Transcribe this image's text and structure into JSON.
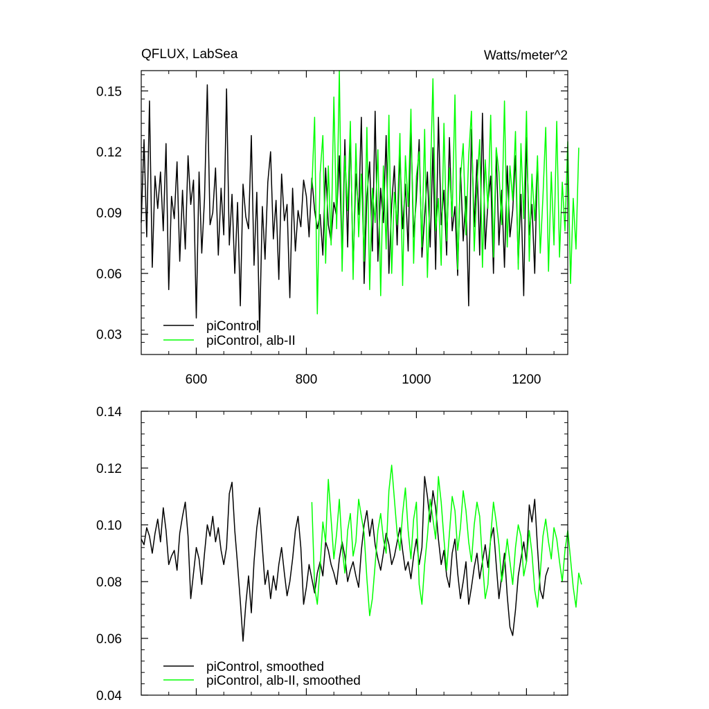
{
  "chart_data": [
    {
      "type": "line",
      "title": "QFLUX, LabSea",
      "units": "Watts/meter^2",
      "xlim": [
        500,
        1275
      ],
      "ylim": [
        0.02,
        0.16
      ],
      "xticks": [
        600,
        800,
        1000,
        1200
      ],
      "xtick_labels": [
        "600",
        "800",
        "1000",
        "1200"
      ],
      "yticks": [
        0.03,
        0.06,
        0.09,
        0.12,
        0.15
      ],
      "ytick_labels": [
        "0.03",
        "0.06",
        "0.09",
        "0.12",
        "0.15"
      ],
      "legend_position": "bottom-left",
      "grid": false,
      "series": [
        {
          "name": "piControl",
          "color": "#000000",
          "x_start": 500,
          "x_step": 5,
          "values": [
            0.085,
            0.126,
            0.078,
            0.145,
            0.063,
            0.108,
            0.092,
            0.11,
            0.081,
            0.124,
            0.052,
            0.098,
            0.087,
            0.115,
            0.066,
            0.101,
            0.072,
            0.118,
            0.094,
            0.106,
            0.038,
            0.11,
            0.07,
            0.097,
            0.153,
            0.084,
            0.09,
            0.112,
            0.069,
            0.102,
            0.079,
            0.151,
            0.074,
            0.099,
            0.06,
            0.095,
            0.044,
            0.104,
            0.088,
            0.082,
            0.128,
            0.064,
            0.1,
            0.031,
            0.093,
            0.067,
            0.105,
            0.12,
            0.077,
            0.096,
            0.057,
            0.109,
            0.086,
            0.094,
            0.048,
            0.102,
            0.071,
            0.091,
            0.083,
            0.106,
            0.098,
            0.078,
            0.107,
            0.091,
            0.082,
            0.089,
            0.069,
            0.112,
            0.084,
            0.076,
            0.095,
            0.088,
            0.118,
            0.067,
            0.126,
            0.073,
            0.131,
            0.062,
            0.109,
            0.089,
            0.137,
            0.055,
            0.098,
            0.115,
            0.071,
            0.14,
            0.066,
            0.102,
            0.085,
            0.128,
            0.06,
            0.094,
            0.113,
            0.074,
            0.119,
            0.082,
            0.104,
            0.071,
            0.133,
            0.078,
            0.097,
            0.126,
            0.068,
            0.088,
            0.11,
            0.073,
            0.122,
            0.062,
            0.137,
            0.084,
            0.101,
            0.069,
            0.127,
            0.081,
            0.093,
            0.059,
            0.112,
            0.076,
            0.098,
            0.044,
            0.131,
            0.083,
            0.116,
            0.069,
            0.139,
            0.072,
            0.095,
            0.108,
            0.06,
            0.121,
            0.074,
            0.101,
            0.063,
            0.113,
            0.078,
            0.091,
            0.118,
            0.065,
            0.099,
            0.049,
            0.127,
            0.079,
            0.094,
            0.06,
            0.117
          ]
        },
        {
          "name": "piControl, alb-II",
          "color": "#00ff00",
          "x_start": 810,
          "x_step": 5,
          "values": [
            0.102,
            0.137,
            0.04,
            0.109,
            0.128,
            0.065,
            0.113,
            0.074,
            0.147,
            0.082,
            0.16,
            0.061,
            0.118,
            0.091,
            0.135,
            0.057,
            0.124,
            0.078,
            0.109,
            0.066,
            0.132,
            0.052,
            0.102,
            0.085,
            0.121,
            0.049,
            0.113,
            0.072,
            0.138,
            0.06,
            0.1,
            0.084,
            0.129,
            0.054,
            0.118,
            0.093,
            0.141,
            0.065,
            0.108,
            0.12,
            0.073,
            0.131,
            0.058,
            0.103,
            0.156,
            0.081,
            0.097,
            0.064,
            0.134,
            0.076,
            0.112,
            0.088,
            0.148,
            0.062,
            0.107,
            0.124,
            0.079,
            0.118,
            0.14,
            0.071,
            0.103,
            0.126,
            0.063,
            0.116,
            0.092,
            0.138,
            0.068,
            0.122,
            0.11,
            0.084,
            0.145,
            0.073,
            0.113,
            0.096,
            0.13,
            0.062,
            0.124,
            0.087,
            0.14,
            0.066,
            0.109,
            0.086,
            0.118,
            0.07,
            0.098,
            0.132,
            0.061,
            0.11,
            0.074,
            0.135,
            0.068,
            0.105,
            0.081,
            0.125,
            0.055,
            0.097,
            0.072,
            0.122
          ]
        }
      ]
    },
    {
      "type": "line",
      "xlim": [
        500,
        1275
      ],
      "ylim": [
        0.04,
        0.14
      ],
      "yticks": [
        0.04,
        0.06,
        0.08,
        0.1,
        0.12,
        0.14
      ],
      "ytick_labels": [
        "0.04",
        "0.06",
        "0.08",
        "0.10",
        "0.12",
        "0.14"
      ],
      "xticks": [
        600,
        800,
        1000,
        1200
      ],
      "legend_position": "bottom-left",
      "grid": false,
      "series": [
        {
          "name": "piControl, smoothed",
          "color": "#000000",
          "x_start": 500,
          "x_step": 5,
          "values": [
            0.095,
            0.093,
            0.099,
            0.096,
            0.09,
            0.097,
            0.102,
            0.094,
            0.106,
            0.098,
            0.086,
            0.089,
            0.091,
            0.084,
            0.097,
            0.103,
            0.108,
            0.096,
            0.074,
            0.083,
            0.092,
            0.088,
            0.079,
            0.09,
            0.1,
            0.096,
            0.103,
            0.094,
            0.099,
            0.091,
            0.086,
            0.092,
            0.111,
            0.115,
            0.098,
            0.086,
            0.073,
            0.059,
            0.072,
            0.082,
            0.069,
            0.087,
            0.099,
            0.106,
            0.092,
            0.079,
            0.084,
            0.074,
            0.082,
            0.077,
            0.086,
            0.092,
            0.083,
            0.075,
            0.08,
            0.088,
            0.098,
            0.103,
            0.092,
            0.072,
            0.078,
            0.086,
            0.081,
            0.076,
            0.083,
            0.087,
            0.082,
            0.094,
            0.091,
            0.086,
            0.083,
            0.079,
            0.088,
            0.094,
            0.089,
            0.08,
            0.084,
            0.087,
            0.082,
            0.078,
            0.091,
            0.1,
            0.105,
            0.096,
            0.102,
            0.093,
            0.088,
            0.084,
            0.09,
            0.097,
            0.093,
            0.086,
            0.089,
            0.094,
            0.099,
            0.091,
            0.084,
            0.087,
            0.081,
            0.089,
            0.095,
            0.086,
            0.092,
            0.117,
            0.11,
            0.101,
            0.112,
            0.106,
            0.095,
            0.086,
            0.091,
            0.082,
            0.078,
            0.09,
            0.095,
            0.083,
            0.074,
            0.08,
            0.087,
            0.072,
            0.078,
            0.085,
            0.09,
            0.081,
            0.087,
            0.093,
            0.085,
            0.095,
            0.099,
            0.086,
            0.074,
            0.082,
            0.09,
            0.075,
            0.064,
            0.061,
            0.07,
            0.082,
            0.088,
            0.094,
            0.087,
            0.107,
            0.101,
            0.109,
            0.092,
            0.077,
            0.074,
            0.082,
            0.085
          ]
        },
        {
          "name": "piControl, alb-II, smoothed",
          "color": "#00ff00",
          "x_start": 810,
          "x_step": 5,
          "values": [
            0.108,
            0.078,
            0.072,
            0.085,
            0.101,
            0.094,
            0.116,
            0.102,
            0.088,
            0.097,
            0.109,
            0.092,
            0.083,
            0.098,
            0.104,
            0.089,
            0.094,
            0.109,
            0.103,
            0.097,
            0.081,
            0.068,
            0.074,
            0.086,
            0.098,
            0.104,
            0.095,
            0.09,
            0.112,
            0.121,
            0.109,
            0.097,
            0.091,
            0.104,
            0.113,
            0.098,
            0.088,
            0.102,
            0.108,
            0.079,
            0.072,
            0.086,
            0.096,
            0.109,
            0.102,
            0.095,
            0.117,
            0.108,
            0.095,
            0.084,
            0.097,
            0.11,
            0.105,
            0.091,
            0.099,
            0.112,
            0.105,
            0.094,
            0.087,
            0.1,
            0.108,
            0.103,
            0.087,
            0.074,
            0.079,
            0.096,
            0.108,
            0.101,
            0.093,
            0.08,
            0.086,
            0.095,
            0.087,
            0.079,
            0.092,
            0.1,
            0.096,
            0.082,
            0.087,
            0.098,
            0.09,
            0.077,
            0.071,
            0.083,
            0.096,
            0.102,
            0.094,
            0.088,
            0.099,
            0.095,
            0.087,
            0.08,
            0.091,
            0.098,
            0.088,
            0.078,
            0.071,
            0.083,
            0.079
          ]
        }
      ]
    }
  ]
}
